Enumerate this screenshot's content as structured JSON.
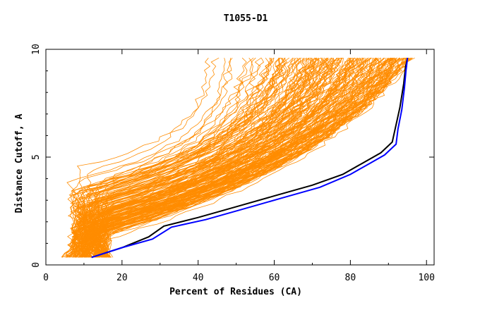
{
  "chart_data": {
    "type": "line",
    "title": "T1055-D1",
    "xlabel": "Percent of Residues (CA)",
    "ylabel": "Distance Cutoff, A",
    "xlim": [
      0,
      102
    ],
    "ylim": [
      0,
      10
    ],
    "x_ticks": [
      "0",
      "20",
      "40",
      "60",
      "80",
      "100"
    ],
    "y_ticks": [
      "0",
      "5",
      "10"
    ],
    "grid": false,
    "colors": {
      "bundle": "#ff8c00",
      "highlight_black": "#000000",
      "highlight_blue": "#0000ff"
    },
    "series": [
      {
        "values": [
          [
            12,
            0.35
          ],
          [
            20,
            0.8
          ],
          [
            27,
            1.3
          ],
          [
            31,
            1.8
          ],
          [
            40,
            2.2
          ],
          [
            50,
            2.7
          ],
          [
            60,
            3.2
          ],
          [
            70,
            3.7
          ],
          [
            78,
            4.2
          ],
          [
            83,
            4.7
          ],
          [
            88,
            5.2
          ],
          [
            91,
            5.7
          ],
          [
            92,
            6.5
          ],
          [
            93,
            7.3
          ],
          [
            94,
            8.4
          ],
          [
            94.5,
            9.2
          ],
          [
            95,
            9.6
          ]
        ]
      },
      {
        "values": [
          [
            12,
            0.35
          ],
          [
            20,
            0.8
          ],
          [
            28,
            1.2
          ],
          [
            33,
            1.75
          ],
          [
            42,
            2.1
          ],
          [
            52,
            2.6
          ],
          [
            62,
            3.1
          ],
          [
            72,
            3.6
          ],
          [
            80,
            4.2
          ],
          [
            85,
            4.7
          ],
          [
            89,
            5.1
          ],
          [
            92,
            5.6
          ],
          [
            92.5,
            6.3
          ],
          [
            93.5,
            7.2
          ],
          [
            94.2,
            8.2
          ],
          [
            94.6,
            9.0
          ],
          [
            95,
            9.6
          ]
        ]
      }
    ]
  }
}
